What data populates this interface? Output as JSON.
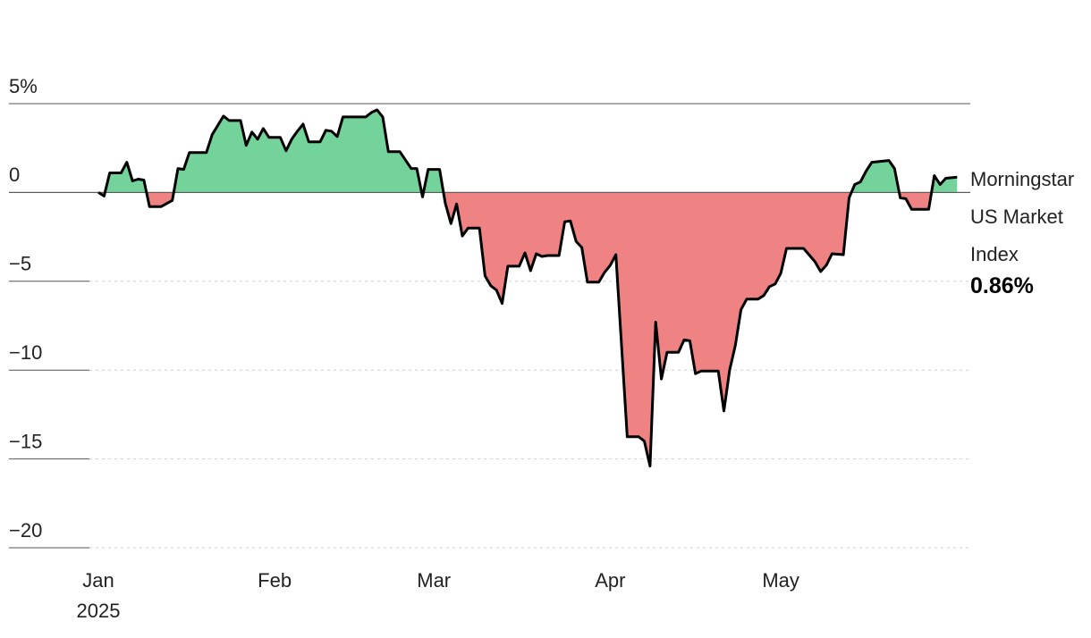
{
  "chart_data": {
    "type": "line",
    "x": [
      1,
      2,
      3,
      5,
      6,
      7,
      8,
      9,
      10,
      12,
      14,
      15,
      16,
      17,
      20,
      21,
      23,
      24,
      26,
      27,
      28,
      29,
      30,
      31,
      33,
      34,
      35,
      36,
      37,
      38,
      40,
      41,
      42,
      43,
      44,
      48,
      49,
      50,
      51,
      52,
      54,
      56,
      57,
      58,
      59,
      61,
      62,
      63,
      64,
      65,
      66,
      68,
      69,
      70,
      71,
      72,
      73,
      75,
      76,
      77,
      78,
      79,
      80,
      82,
      83,
      84,
      85,
      86,
      87,
      89,
      90,
      91,
      92,
      94,
      96,
      97,
      98,
      99,
      100,
      101,
      103,
      104,
      105,
      106,
      107,
      110,
      111,
      112,
      113,
      114,
      115,
      117,
      118,
      119,
      120,
      121,
      122,
      125,
      127,
      128,
      129,
      130,
      132,
      133,
      134,
      135,
      136,
      137,
      140,
      141,
      142,
      143,
      144,
      147,
      148,
      149,
      150,
      152
    ],
    "series": [
      {
        "name": "Morningstar US Market Index",
        "color": "#000000",
        "values": [
          0,
          -0.2,
          1.1,
          1.1,
          1.7,
          0.65,
          0.75,
          0.7,
          -0.8,
          -0.8,
          -0.45,
          1.35,
          1.3,
          2.25,
          2.25,
          3.25,
          4.3,
          4.05,
          4.05,
          2.65,
          3.4,
          3.0,
          3.6,
          3.1,
          3.1,
          2.35,
          3.0,
          3.45,
          3.85,
          2.85,
          2.85,
          3.5,
          3.45,
          3.15,
          4.25,
          4.25,
          4.5,
          4.65,
          4.25,
          2.3,
          2.3,
          1.35,
          1.35,
          -0.25,
          1.3,
          1.3,
          -0.6,
          -1.75,
          -0.65,
          -2.45,
          -2.0,
          -2.0,
          -4.7,
          -5.25,
          -5.5,
          -6.25,
          -4.15,
          -4.15,
          -3.4,
          -4.4,
          -3.45,
          -3.6,
          -3.55,
          -3.55,
          -1.65,
          -1.6,
          -2.75,
          -3.1,
          -5.05,
          -5.05,
          -4.5,
          -4.1,
          -3.5,
          -13.75,
          -13.75,
          -14.0,
          -15.4,
          -7.3,
          -10.5,
          -9.0,
          -9.0,
          -8.3,
          -8.35,
          -10.2,
          -10.05,
          -10.05,
          -12.3,
          -10.0,
          -8.6,
          -6.6,
          -6.0,
          -6.0,
          -5.8,
          -5.3,
          -5.15,
          -4.55,
          -3.15,
          -3.15,
          -3.9,
          -4.45,
          -4.1,
          -3.45,
          -3.5,
          -0.3,
          0.45,
          0.6,
          1.2,
          1.7,
          1.8,
          1.35,
          -0.3,
          -0.35,
          -0.95,
          -0.95,
          0.95,
          0.45,
          0.8,
          0.86
        ],
        "last_label": "0.86%"
      }
    ],
    "positive_color": "#74d39a",
    "negative_color": "#ef8282",
    "xlim": [
      1,
      154
    ],
    "xticks": [
      {
        "value": 1,
        "label": "Jan"
      },
      {
        "value": 32,
        "label": "Feb"
      },
      {
        "value": 60,
        "label": "Mar"
      },
      {
        "value": 91,
        "label": "Apr"
      },
      {
        "value": 121,
        "label": "May"
      }
    ],
    "year_label": "2025",
    "ylim": [
      -20,
      5
    ],
    "yticks": [
      {
        "value": 5,
        "label": "5%"
      },
      0,
      {
        "value": -5,
        "label": "−5"
      },
      {
        "value": -10,
        "label": "−10"
      },
      {
        "value": -15,
        "label": "−15"
      },
      {
        "value": -20,
        "label": "−20"
      }
    ],
    "grid": true
  }
}
